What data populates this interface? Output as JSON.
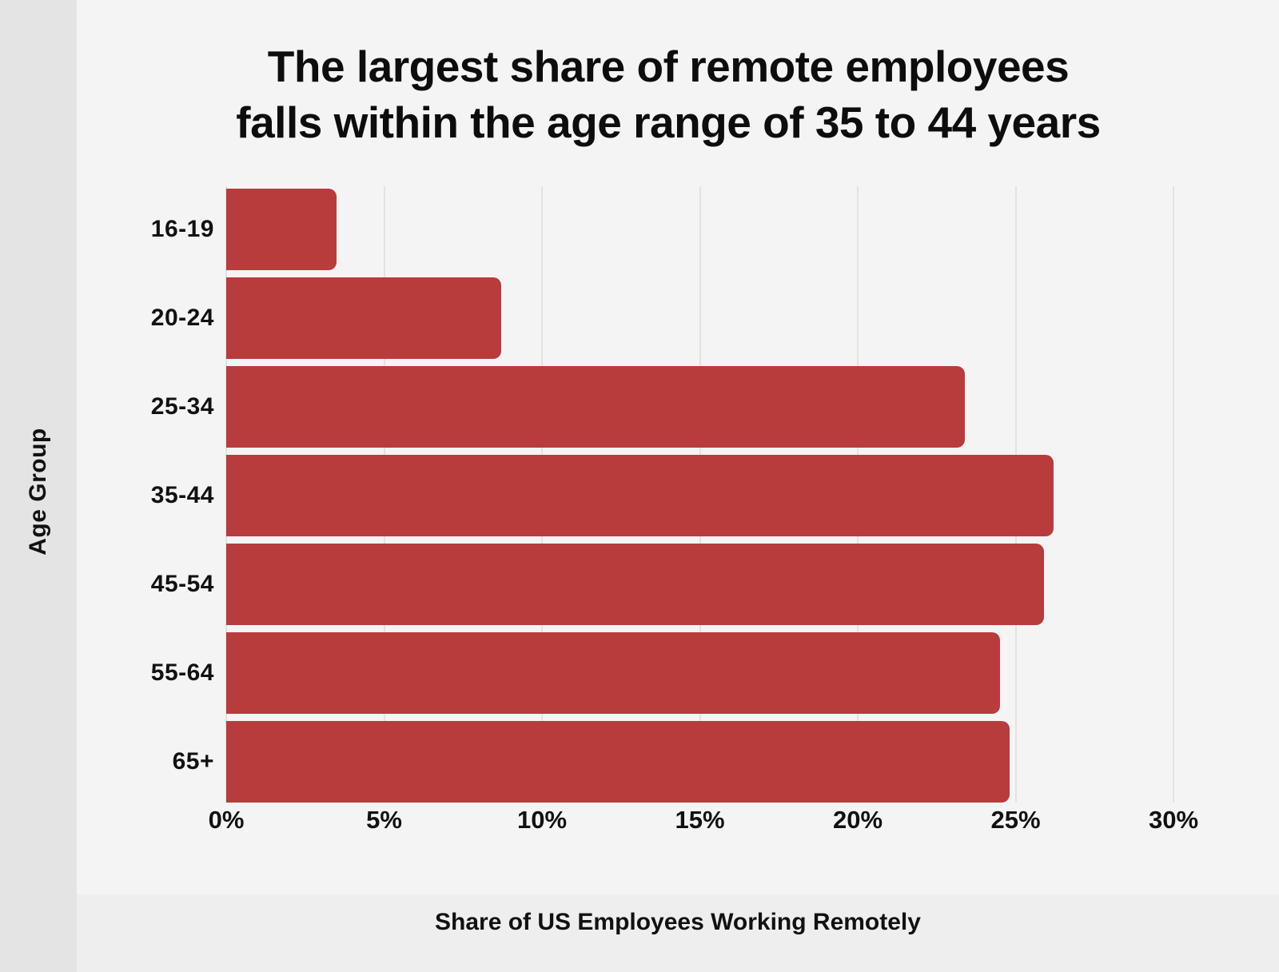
{
  "page": {
    "background_color": "#f5f4f4",
    "left_strip_color": "#e5e4e4",
    "bottom_strip_color": "#eeeeee",
    "text_color": "#111111"
  },
  "title": {
    "line1": "The largest share of remote employees",
    "line2": "falls within the age range of 35 to 44 years"
  },
  "chart_data": {
    "type": "bar",
    "orientation": "horizontal",
    "title": "The largest share of remote employees falls within the age range of 35 to 44 years",
    "categories": [
      "16-19",
      "20-24",
      "25-34",
      "35-44",
      "45-54",
      "55-64",
      "65+"
    ],
    "values": [
      3.5,
      8.7,
      23.4,
      26.2,
      25.9,
      24.5,
      24.8
    ],
    "xlabel": "Share of US Employees Working Remotely",
    "ylabel": "Age Group",
    "x_tick_values": [
      0,
      5,
      10,
      15,
      20,
      25,
      30
    ],
    "x_tick_labels": [
      "0%",
      "5%",
      "10%",
      "15%",
      "20%",
      "25%",
      "30%"
    ],
    "xlim": [
      0,
      31.4
    ],
    "grid": true,
    "legend": false,
    "bar_color": "#b83c3c",
    "gridline_color": "#e5e1e1"
  }
}
